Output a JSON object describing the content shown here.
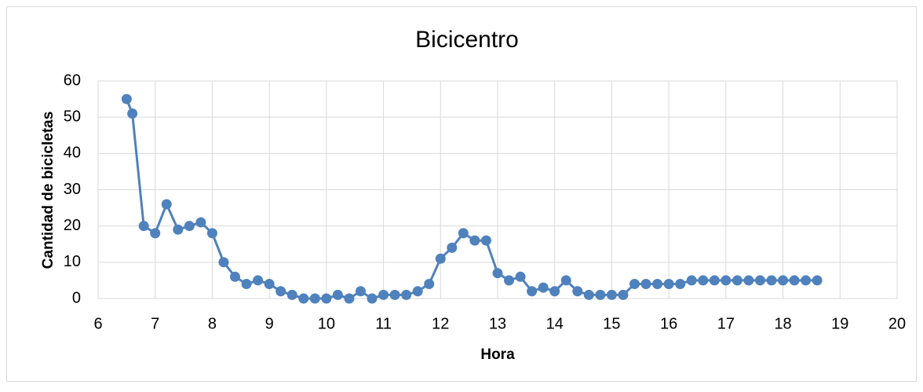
{
  "chart_data": {
    "type": "line",
    "title": "Bicicentro",
    "x_label": "Hora",
    "y_label": "Cantidad de bicicletas",
    "x": [
      6.5,
      6.6,
      6.8,
      7.0,
      7.2,
      7.4,
      7.6,
      7.8,
      8.0,
      8.2,
      8.4,
      8.6,
      8.8,
      9.0,
      9.2,
      9.4,
      9.6,
      9.8,
      10.0,
      10.2,
      10.4,
      10.6,
      10.8,
      11.0,
      11.2,
      11.4,
      11.6,
      11.8,
      12.0,
      12.2,
      12.4,
      12.6,
      12.8,
      13.0,
      13.2,
      13.4,
      13.6,
      13.8,
      14.0,
      14.2,
      14.4,
      14.6,
      14.8,
      15.0,
      15.2,
      15.4,
      15.6,
      15.8,
      16.0,
      16.2,
      16.4,
      16.6,
      16.8,
      17.0,
      17.2,
      17.4,
      17.6,
      17.8,
      18.0,
      18.2,
      18.4,
      18.6
    ],
    "series": [
      {
        "name": "Bicicentro",
        "color": "#4f81bd",
        "values": [
          55,
          51,
          20,
          18,
          26,
          19,
          20,
          21,
          18,
          10,
          6,
          4,
          5,
          4,
          2,
          1,
          0,
          0,
          0,
          1,
          0,
          2,
          0,
          1,
          1,
          1,
          2,
          4,
          11,
          14,
          18,
          16,
          16,
          7,
          5,
          6,
          2,
          3,
          2,
          5,
          2,
          1,
          1,
          1,
          1,
          4,
          4,
          4,
          4,
          4,
          5,
          5,
          5,
          5,
          5,
          5,
          5,
          5,
          5,
          5,
          5,
          5
        ]
      }
    ],
    "xlim": [
      6,
      20
    ],
    "xticks": [
      6,
      7,
      8,
      9,
      10,
      11,
      12,
      13,
      14,
      15,
      16,
      17,
      18,
      19,
      20
    ],
    "ylim": [
      0,
      60
    ],
    "yticks": [
      0,
      10,
      20,
      30,
      40,
      50,
      60
    ],
    "grid": true
  }
}
